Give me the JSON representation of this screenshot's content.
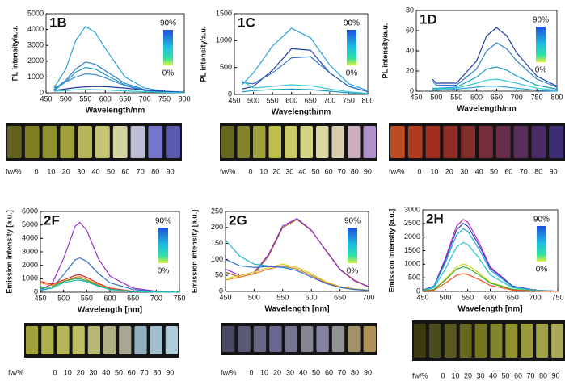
{
  "chart_data": [
    {
      "type": "line",
      "title": "1B",
      "xlabel": "Wavelength/nm",
      "ylabel": "PL intensity/a.u.",
      "xlim": [
        450,
        800
      ],
      "xticks": [
        450,
        500,
        550,
        600,
        650,
        700,
        750,
        800
      ],
      "ylim": [
        0,
        5000
      ],
      "yticks": [
        0,
        1000,
        2000,
        3000,
        4000,
        5000
      ],
      "x": [
        470,
        500,
        525,
        550,
        575,
        600,
        650,
        700,
        750,
        800
      ],
      "series": [
        {
          "color": "#2aa3e0",
          "values": [
            300,
            1500,
            3300,
            4200,
            3800,
            2800,
            1000,
            300,
            100,
            50
          ]
        },
        {
          "color": "#2f7fc8",
          "values": [
            200,
            800,
            1500,
            1950,
            1800,
            1400,
            600,
            200,
            80,
            40
          ]
        },
        {
          "color": "#1a9ec0",
          "values": [
            150,
            700,
            1300,
            1600,
            1500,
            1150,
            500,
            150,
            60,
            30
          ]
        },
        {
          "color": "#3a8fd8",
          "values": [
            300,
            700,
            1000,
            1200,
            1150,
            950,
            450,
            150,
            60,
            30
          ]
        },
        {
          "color": "#1f3fa8",
          "values": [
            150,
            250,
            330,
            380,
            400,
            390,
            300,
            180,
            80,
            30
          ]
        },
        {
          "color": "#38c8d8",
          "values": [
            100,
            150,
            190,
            210,
            200,
            180,
            120,
            70,
            30,
            10
          ]
        }
      ],
      "scale_top": "90%",
      "scale_bottom": "0%",
      "fractions_label": "fw/%",
      "fractions": [
        "0",
        "10",
        "20",
        "30",
        "40",
        "50",
        "60",
        "70",
        "80",
        "90"
      ]
    },
    {
      "type": "line",
      "title": "1C",
      "xlabel": "Wavelength/nm",
      "ylabel": "PL intensity/a.u.",
      "xlim": [
        450,
        800
      ],
      "xticks": [
        450,
        500,
        550,
        600,
        650,
        700,
        750,
        800
      ],
      "ylim": [
        0,
        1500
      ],
      "yticks": [
        0,
        500,
        1000,
        1500
      ],
      "x": [
        470,
        500,
        550,
        600,
        650,
        700,
        750,
        800
      ],
      "series": [
        {
          "color": "#2aa3e0",
          "values": [
            180,
            400,
            900,
            1230,
            1050,
            550,
            200,
            70
          ]
        },
        {
          "color": "#1f3fa8",
          "values": [
            100,
            150,
            450,
            850,
            820,
            400,
            150,
            50
          ]
        },
        {
          "color": "#2f6fc8",
          "values": [
            220,
            200,
            400,
            680,
            700,
            400,
            150,
            50
          ]
        },
        {
          "color": "#38c8d8",
          "values": [
            250,
            120,
            150,
            180,
            160,
            100,
            50,
            20
          ]
        },
        {
          "color": "#1a9ec0",
          "values": [
            50,
            70,
            90,
            100,
            90,
            60,
            30,
            10
          ]
        }
      ],
      "scale_top": "90%",
      "scale_bottom": "0%",
      "fractions_label": "fw/%",
      "fractions": [
        "0",
        "10",
        "20",
        "30",
        "40",
        "50",
        "60",
        "70",
        "80",
        "90"
      ]
    },
    {
      "type": "line",
      "title": "1D",
      "xlabel": "Wavelength/nm",
      "ylabel": "PL intensity/a.u.",
      "xlim": [
        450,
        800
      ],
      "xticks": [
        450,
        500,
        550,
        600,
        650,
        700,
        750,
        800
      ],
      "ylim": [
        0,
        80
      ],
      "yticks": [
        0,
        20,
        40,
        60,
        80
      ],
      "x": [
        490,
        500,
        550,
        600,
        625,
        650,
        675,
        700,
        750,
        800
      ],
      "series": [
        {
          "color": "#1f3fa8",
          "values": [
            12,
            8,
            8,
            30,
            55,
            63,
            55,
            38,
            15,
            5
          ]
        },
        {
          "color": "#2f7fc8",
          "values": [
            10,
            6,
            6,
            22,
            40,
            48,
            42,
            30,
            12,
            4
          ]
        },
        {
          "color": "#1a9ec0",
          "values": [
            3,
            3,
            4,
            14,
            22,
            24,
            21,
            15,
            6,
            2
          ]
        },
        {
          "color": "#38c8d8",
          "values": [
            2,
            2,
            3,
            8,
            11,
            12,
            10,
            8,
            3,
            1
          ]
        },
        {
          "color": "#2aa3e0",
          "values": [
            1,
            1,
            2,
            4,
            5,
            5,
            4,
            3,
            1,
            0
          ]
        }
      ],
      "scale_top": "90%",
      "scale_bottom": "0%",
      "fractions_label": "fw/%",
      "fractions": [
        "0",
        "10",
        "20",
        "30",
        "40",
        "50",
        "60",
        "70",
        "80",
        "90"
      ]
    },
    {
      "type": "line",
      "title": "2F",
      "xlabel": "Wavelength [nm]",
      "ylabel": "Emission intensity [a.u.]",
      "xlim": [
        450,
        750
      ],
      "xticks": [
        450,
        500,
        550,
        600,
        650,
        700,
        750
      ],
      "ylim": [
        0,
        6000
      ],
      "yticks": [
        0,
        1000,
        2000,
        3000,
        4000,
        5000,
        6000
      ],
      "x": [
        450,
        475,
        500,
        525,
        535,
        550,
        575,
        600,
        650,
        700,
        750
      ],
      "series": [
        {
          "color": "#9b2fd0",
          "values": [
            200,
            600,
            2500,
            4900,
            5200,
            4600,
            2500,
            1200,
            300,
            80,
            20
          ]
        },
        {
          "color": "#2f6fc8",
          "values": [
            150,
            300,
            1300,
            2400,
            2550,
            2300,
            1400,
            700,
            200,
            60,
            20
          ]
        },
        {
          "color": "#e02020",
          "values": [
            800,
            600,
            900,
            1250,
            1300,
            1100,
            650,
            300,
            80,
            20,
            10
          ]
        },
        {
          "color": "#f08020",
          "values": [
            700,
            500,
            800,
            1100,
            1150,
            950,
            550,
            250,
            70,
            20,
            10
          ]
        },
        {
          "color": "#30b030",
          "values": [
            300,
            400,
            800,
            1000,
            1000,
            850,
            500,
            220,
            60,
            20,
            5
          ]
        },
        {
          "color": "#20b8c8",
          "values": [
            200,
            300,
            700,
            880,
            900,
            770,
            450,
            200,
            55,
            15,
            5
          ]
        }
      ],
      "scale_top": "90%",
      "scale_bottom": "0%",
      "fractions_label": "fw/%",
      "fractions": [
        "0",
        "10",
        "20",
        "30",
        "40",
        "50",
        "60",
        "70",
        "80",
        "90"
      ]
    },
    {
      "type": "line",
      "title": "2G",
      "xlabel": "Wavelength [nm]",
      "ylabel": "Emission intensity [a.u.]",
      "xlim": [
        450,
        700
      ],
      "xticks": [
        450,
        500,
        550,
        600,
        650,
        700
      ],
      "ylim": [
        0,
        250
      ],
      "yticks": [
        0,
        50,
        100,
        150,
        200,
        250
      ],
      "x": [
        450,
        475,
        500,
        525,
        550,
        575,
        600,
        625,
        650,
        675,
        700
      ],
      "series": [
        {
          "color": "#a0602a",
          "values": [
            60,
            45,
            55,
            110,
            200,
            225,
            190,
            130,
            70,
            35,
            15
          ]
        },
        {
          "color": "#9b2fd0",
          "values": [
            70,
            50,
            60,
            115,
            205,
            228,
            192,
            128,
            68,
            33,
            14
          ]
        },
        {
          "color": "#20b8c8",
          "values": [
            160,
            110,
            85,
            80,
            78,
            70,
            50,
            30,
            15,
            8,
            4
          ]
        },
        {
          "color": "#e0d020",
          "values": [
            40,
            50,
            60,
            75,
            85,
            75,
            55,
            30,
            15,
            8,
            4
          ]
        },
        {
          "color": "#f08020",
          "values": [
            35,
            45,
            55,
            70,
            80,
            70,
            50,
            28,
            14,
            7,
            3
          ]
        },
        {
          "color": "#2f6fc8",
          "values": [
            100,
            80,
            75,
            78,
            75,
            65,
            45,
            25,
            12,
            6,
            3
          ]
        }
      ],
      "scale_top": "90%",
      "scale_bottom": "0%",
      "fractions_label": "fw/%",
      "fractions": [
        "0",
        "10",
        "20",
        "30",
        "40",
        "50",
        "60",
        "70",
        "80",
        "90"
      ]
    },
    {
      "type": "line",
      "title": "2H",
      "xlabel": "Wavelength [nm]",
      "ylabel": "Emission intensity [a.u.]",
      "xlim": [
        450,
        750
      ],
      "xticks": [
        450,
        500,
        550,
        600,
        650,
        700,
        750
      ],
      "ylim": [
        0,
        3000
      ],
      "yticks": [
        0,
        500,
        1000,
        1500,
        2000,
        2500,
        3000
      ],
      "x": [
        450,
        475,
        500,
        525,
        540,
        550,
        575,
        600,
        650,
        700,
        750
      ],
      "series": [
        {
          "color": "#d020c0",
          "values": [
            50,
            200,
            1200,
            2400,
            2650,
            2550,
            1800,
            900,
            200,
            50,
            10
          ]
        },
        {
          "color": "#2f4fc8",
          "values": [
            45,
            190,
            1130,
            2260,
            2500,
            2400,
            1700,
            850,
            190,
            45,
            10
          ]
        },
        {
          "color": "#2aa3e0",
          "values": [
            40,
            170,
            1040,
            2080,
            2300,
            2210,
            1560,
            780,
            170,
            40,
            8
          ]
        },
        {
          "color": "#20c8d0",
          "values": [
            35,
            135,
            815,
            1630,
            1800,
            1730,
            1220,
            610,
            135,
            35,
            7
          ]
        },
        {
          "color": "#e0d020",
          "values": [
            20,
            75,
            450,
            900,
            1000,
            960,
            680,
            340,
            75,
            20,
            4
          ]
        },
        {
          "color": "#30b030",
          "values": [
            18,
            70,
            410,
            820,
            900,
            860,
            610,
            305,
            70,
            18,
            4
          ]
        },
        {
          "color": "#f05020",
          "values": [
            12,
            50,
            300,
            590,
            650,
            620,
            440,
            220,
            50,
            12,
            3
          ]
        }
      ],
      "scale_top": "90%",
      "scale_bottom": "0%",
      "fractions_label": "fw/%",
      "fractions": [
        "0",
        "10",
        "20",
        "30",
        "40",
        "50",
        "60",
        "70",
        "80",
        "90"
      ]
    }
  ]
}
